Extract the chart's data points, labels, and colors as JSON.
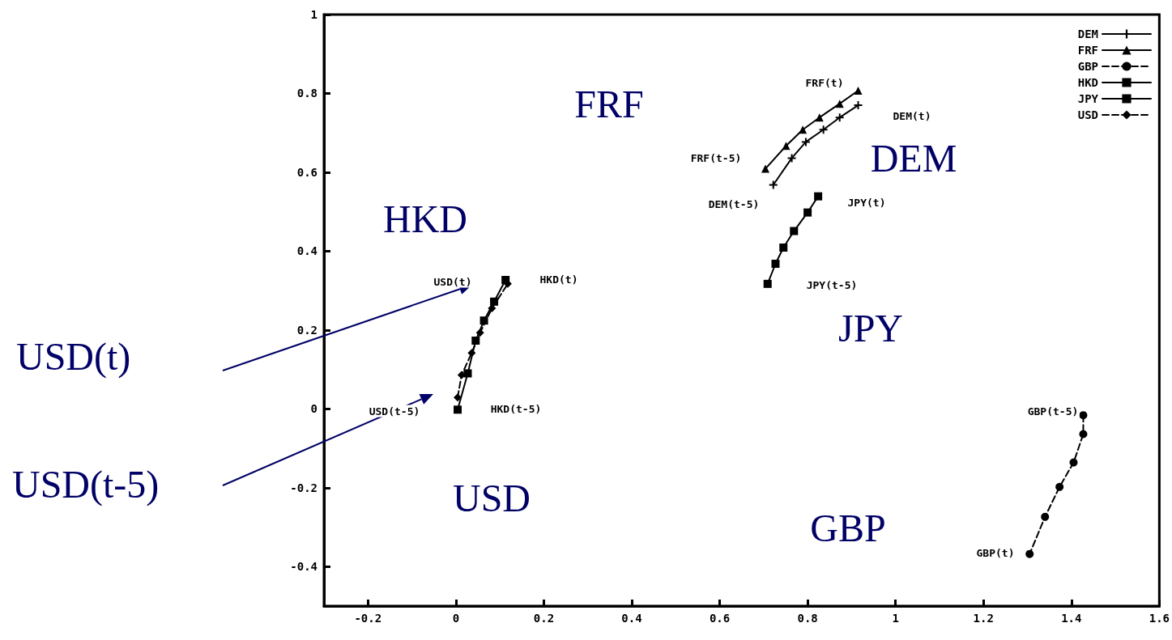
{
  "chart_data": {
    "type": "line",
    "legend": "top right",
    "grid": false,
    "xlim": [
      -0.3,
      1.6
    ],
    "ylim": [
      -0.5,
      1
    ],
    "xticks": [
      -0.2,
      0,
      0.2,
      0.4,
      0.6,
      0.8,
      1,
      1.2,
      1.4,
      1.6
    ],
    "yticks": [
      -0.4,
      -0.2,
      0,
      0.2,
      0.4,
      0.6,
      0.8,
      1
    ],
    "series": [
      {
        "name": "DEM",
        "color": "#000000",
        "marker": "cross",
        "line_style": "solid",
        "x": [
          0.722,
          0.764,
          0.796,
          0.836,
          0.873,
          0.915
        ],
        "values": [
          0.568,
          0.636,
          0.677,
          0.708,
          0.739,
          0.77
        ]
      },
      {
        "name": "FRF",
        "color": "#000000",
        "marker": "triangle",
        "line_style": "solid",
        "x": [
          0.704,
          0.751,
          0.789,
          0.827,
          0.873,
          0.915
        ],
        "values": [
          0.609,
          0.667,
          0.708,
          0.739,
          0.774,
          0.807
        ]
      },
      {
        "name": "GBP",
        "color": "#000000",
        "marker": "circle",
        "line_style": "dashed",
        "x": [
          1.427,
          1.427,
          1.405,
          1.373,
          1.34,
          1.305
        ],
        "values": [
          -0.016,
          -0.064,
          -0.136,
          -0.198,
          -0.274,
          -0.368
        ]
      },
      {
        "name": "HKD",
        "color": "#000000",
        "marker": "square",
        "line_style": "solid",
        "x": [
          0.004,
          0.027,
          0.045,
          0.064,
          0.087,
          0.113
        ],
        "values": [
          -0.002,
          0.09,
          0.173,
          0.224,
          0.272,
          0.327
        ]
      },
      {
        "name": "JPY",
        "color": "#000000",
        "marker": "square",
        "line_style": "solid",
        "x": [
          0.709,
          0.727,
          0.745,
          0.769,
          0.8,
          0.824
        ],
        "values": [
          0.317,
          0.368,
          0.409,
          0.451,
          0.498,
          0.539
        ]
      },
      {
        "name": "USD",
        "color": "#000000",
        "marker": "diamond",
        "line_style": "dashed",
        "x": [
          0.004,
          0.013,
          0.036,
          0.055,
          0.082,
          0.118
        ],
        "values": [
          0.029,
          0.086,
          0.142,
          0.193,
          0.255,
          0.317
        ]
      }
    ],
    "annotations": [
      "FRF",
      "DEM",
      "HKD",
      "JPY",
      "USD",
      "GBP",
      "USD(t)",
      "USD(t-5)",
      "FRF(t)",
      "DEM(t)",
      "FRF(t-5)",
      "DEM(t-5)",
      "JPY(t)",
      "JPY(t-5)",
      "USD(t)",
      "HKD(t)",
      "USD(t-5)",
      "HKD(t-5)",
      "GBP(t-5)",
      "GBP(t)"
    ]
  }
}
